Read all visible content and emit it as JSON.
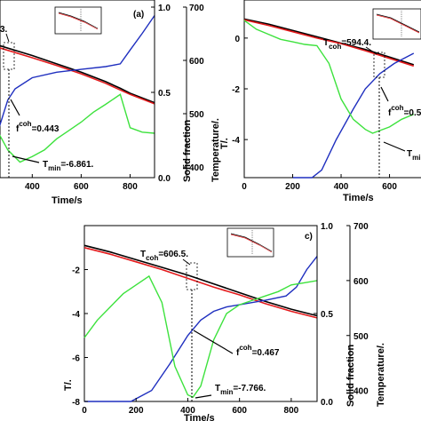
{
  "chart_data": [
    {
      "type": "line",
      "panel_label": "(a)",
      "xlabel": "Time/s",
      "ylabel_left": "",
      "ylabel_solid": "Solid fraction",
      "ylabel_temp": "Temperature/.",
      "xticks": [
        400,
        600,
        800
      ],
      "yticks_solid": [
        0.0,
        0.5,
        1.0
      ],
      "yticks_temp": [
        400,
        500,
        600,
        700
      ],
      "xlim": [
        250,
        900
      ],
      "ylim_temp": [
        380,
        700
      ],
      "annotations": {
        "tcoh": "3.",
        "fs": "f",
        "fs_sup": "coh",
        "fs_value": "=0.443",
        "tmin": "T",
        "tmin_sub": "min",
        "tmin_value": "=-6.861."
      },
      "series": [
        {
          "color": "#000000",
          "x": [
            250,
            400,
            500,
            600,
            700,
            760,
            800,
            900
          ],
          "y": [
            620,
            600,
            585,
            570,
            553,
            541,
            532,
            515
          ]
        },
        {
          "color": "#e41a1c",
          "x": [
            250,
            400,
            500,
            600,
            700,
            760,
            800,
            900
          ],
          "y": [
            616,
            596,
            582,
            567,
            550,
            538,
            530,
            513
          ]
        },
        {
          "color": "#1f2fbf",
          "x": [
            250,
            300,
            330,
            400,
            500,
            600,
            700,
            760,
            800,
            850,
            900
          ],
          "y": [
            450,
            520,
            540,
            560,
            570,
            575,
            580,
            585,
            610,
            640,
            672
          ]
        },
        {
          "color": "#3de23d",
          "x": [
            250,
            300,
            350,
            400,
            450,
            500,
            550,
            600,
            650,
            700,
            760,
            800,
            850,
            900
          ],
          "y": [
            470,
            430,
            408,
            418,
            430,
            450,
            465,
            480,
            498,
            512,
            530,
            470,
            462,
            460
          ]
        }
      ]
    },
    {
      "type": "line",
      "panel_label": "",
      "xlabel": "Time/s",
      "ylabel_left": "T/.",
      "xticks": [
        0,
        200,
        400,
        600
      ],
      "yticks_left": [
        -4,
        -2,
        0
      ],
      "xlim": [
        0,
        730
      ],
      "ylim_left": [
        -5.5,
        1.5
      ],
      "annotations": {
        "tcoh": "T",
        "tcoh_sub": "coh",
        "tcoh_value": "=594.4.",
        "fs": "f",
        "fs_sup": "coh",
        "fs_value": "=0.5",
        "tmin": "T",
        "tmin_sub": "min"
      },
      "series": [
        {
          "color": "#000000",
          "x": [
            0,
            100,
            200,
            300,
            400,
            500,
            600,
            700
          ],
          "y": [
            0.75,
            0.55,
            0.3,
            0.05,
            -0.2,
            -0.45,
            -0.75,
            -1.05
          ]
        },
        {
          "color": "#e41a1c",
          "x": [
            0,
            100,
            200,
            300,
            400,
            500,
            600,
            700
          ],
          "y": [
            0.72,
            0.5,
            0.25,
            0.0,
            -0.22,
            -0.5,
            -0.8,
            -1.1
          ]
        },
        {
          "color": "#1f2fbf",
          "x": [
            200,
            280,
            320,
            380,
            450,
            500,
            560,
            620,
            700
          ],
          "y": [
            -5.5,
            -5.5,
            -5.2,
            -4.0,
            -2.8,
            -2.0,
            -1.4,
            -1.0,
            -0.6
          ]
        },
        {
          "color": "#3de23d",
          "x": [
            0,
            50,
            100,
            150,
            200,
            250,
            300,
            350,
            400,
            450,
            500,
            530,
            600,
            650,
            700
          ],
          "y": [
            0.7,
            0.35,
            0.15,
            -0.05,
            -0.15,
            -0.25,
            -0.3,
            -1.0,
            -2.4,
            -3.2,
            -3.6,
            -3.75,
            -3.5,
            -3.2,
            -3.0
          ]
        }
      ]
    },
    {
      "type": "line",
      "panel_label": "c)",
      "xlabel": "Time/s",
      "ylabel_left": "T/.",
      "ylabel_solid": "Solid fraction",
      "ylabel_temp": "Temperature/.",
      "xticks": [
        0,
        200,
        400,
        600,
        800
      ],
      "yticks_left": [
        -8,
        -6,
        -4,
        -2
      ],
      "yticks_solid": [
        0.0,
        0.5,
        1.0
      ],
      "yticks_temp": [
        400,
        500,
        600,
        700
      ],
      "xlim": [
        0,
        900
      ],
      "ylim_left": [
        -8,
        0
      ],
      "annotations": {
        "tcoh": "T",
        "tcoh_sub": "coh",
        "tcoh_value": "=606.5.",
        "fs": "f",
        "fs_sup": "coh",
        "fs_value": "=0.467",
        "tmin": "T",
        "tmin_sub": "min",
        "tmin_value": "=-7.766."
      },
      "series": [
        {
          "color": "#000000",
          "x": [
            0,
            100,
            200,
            300,
            400,
            500,
            600,
            700,
            800,
            900
          ],
          "y": [
            -0.9,
            -1.2,
            -1.55,
            -1.9,
            -2.25,
            -2.65,
            -3.05,
            -3.45,
            -3.8,
            -4.1
          ]
        },
        {
          "color": "#e41a1c",
          "x": [
            0,
            100,
            200,
            300,
            400,
            500,
            600,
            700,
            800,
            900
          ],
          "y": [
            -1.0,
            -1.3,
            -1.65,
            -2.0,
            -2.4,
            -2.8,
            -3.15,
            -3.55,
            -3.9,
            -4.2
          ]
        },
        {
          "color": "#1f2fbf",
          "x": [
            0,
            180,
            260,
            330,
            400,
            450,
            500,
            550,
            600,
            700,
            780,
            820,
            860,
            900
          ],
          "y": [
            -8,
            -8,
            -7.5,
            -6.3,
            -5.0,
            -4.3,
            -3.9,
            -3.7,
            -3.6,
            -3.4,
            -3.2,
            -2.8,
            -2.0,
            -1.4
          ]
        },
        {
          "color": "#3de23d",
          "x": [
            0,
            50,
            100,
            150,
            200,
            250,
            300,
            350,
            400,
            420,
            450,
            500,
            550,
            600,
            650,
            700,
            750,
            800,
            850,
            900
          ],
          "y": [
            -5.1,
            -4.3,
            -3.7,
            -3.1,
            -2.7,
            -2.3,
            -3.5,
            -6.4,
            -7.7,
            -7.8,
            -7.3,
            -5.2,
            -4.0,
            -3.6,
            -3.4,
            -3.2,
            -3.0,
            -2.7,
            -2.6,
            -2.5
          ]
        }
      ]
    }
  ]
}
